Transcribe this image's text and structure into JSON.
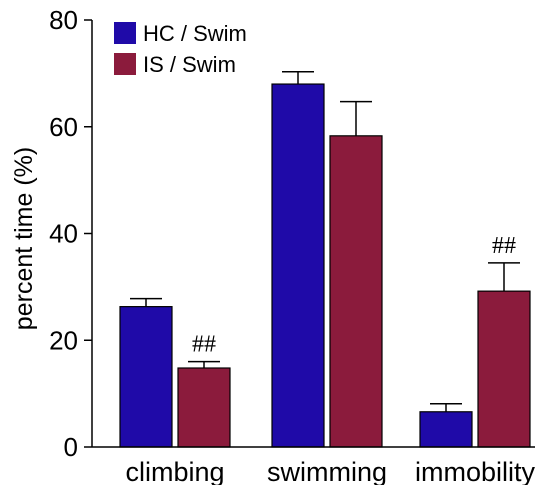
{
  "chart_data": {
    "type": "bar",
    "title": "",
    "xlabel": "",
    "ylabel": "percent time (%)",
    "ylim": [
      0,
      80
    ],
    "yticks": [
      0,
      20,
      40,
      60,
      80
    ],
    "grid": false,
    "legend_position": "top-left",
    "categories": [
      "climbing",
      "swimming",
      "immobility"
    ],
    "series": [
      {
        "name": "HC / Swim",
        "color": "#1f0aa8",
        "values": [
          26.3,
          68.0,
          6.6
        ],
        "errors": [
          1.5,
          2.3,
          1.5
        ]
      },
      {
        "name": "IS / Swim",
        "color": "#8b1b3c",
        "values": [
          14.8,
          58.3,
          29.2
        ],
        "errors": [
          1.2,
          6.4,
          5.3
        ]
      }
    ],
    "annotations": [
      {
        "text": "##",
        "category_index": 0,
        "series_index": 1
      },
      {
        "text": "##",
        "category_index": 2,
        "series_index": 1
      }
    ]
  }
}
